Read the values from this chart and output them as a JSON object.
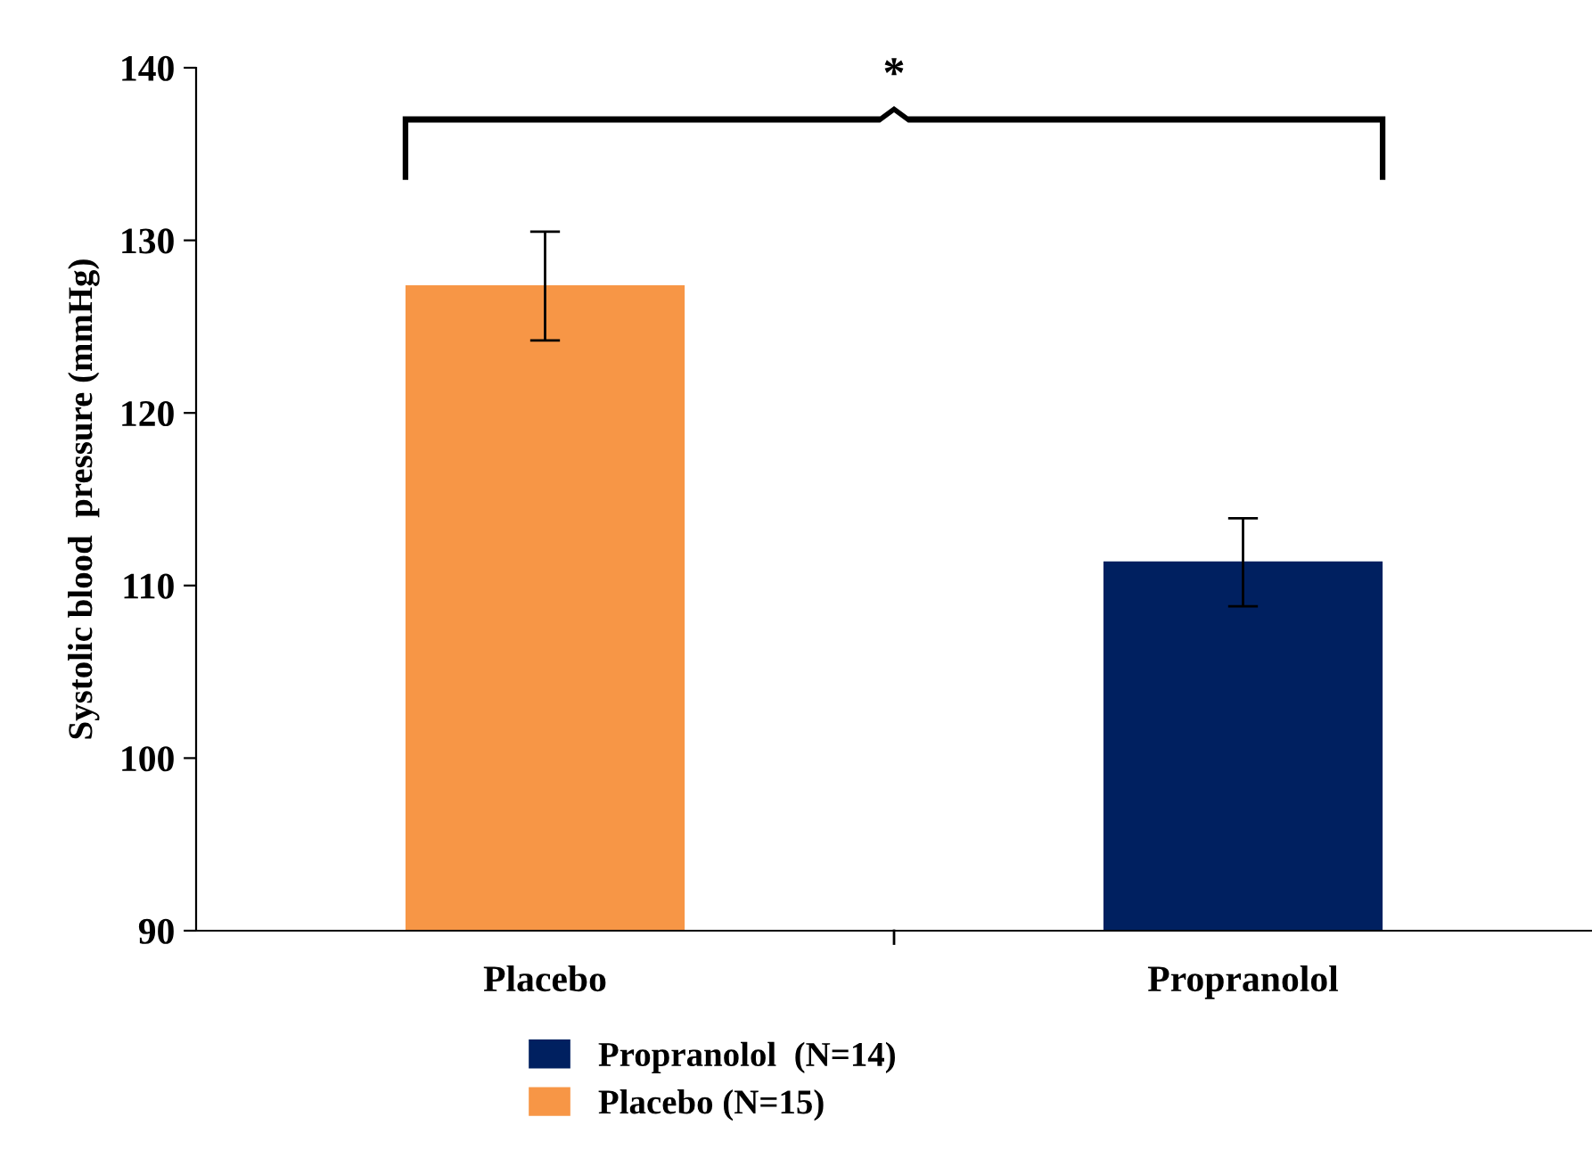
{
  "chart_data": {
    "type": "bar",
    "ylabel": "Systolic blood  pressure (mmHg)",
    "categories": [
      "Placebo",
      "Propranolol"
    ],
    "series": [
      {
        "name": "Propranolol  (N=14)",
        "color": "#002060",
        "values": [
          null,
          111.4
        ],
        "errors": [
          null,
          [
            108.8,
            113.9
          ]
        ]
      },
      {
        "name": "Placebo (N=15)",
        "color": "#f79646",
        "values": [
          127.4,
          null
        ],
        "errors": [
          [
            124.2,
            130.5
          ],
          null
        ]
      }
    ],
    "ylim": [
      90,
      140
    ],
    "yticks": [
      90,
      100,
      110,
      120,
      130,
      140
    ],
    "grid": false,
    "legend": "bottom",
    "annotations": [
      "*"
    ]
  }
}
